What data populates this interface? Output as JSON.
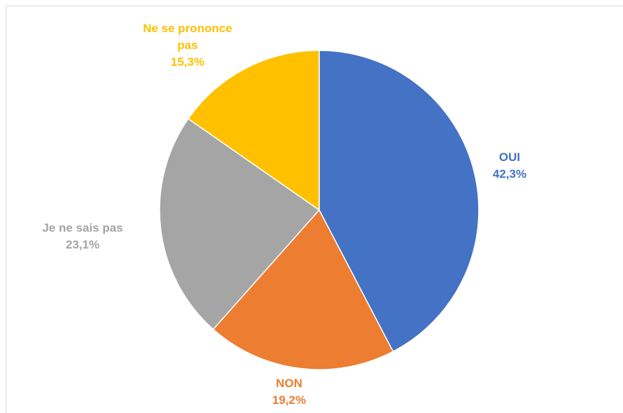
{
  "chart_data": {
    "type": "pie",
    "categories": [
      "OUI",
      "NON",
      "Je ne sais pas",
      "Ne se prononce pas"
    ],
    "values": [
      42.3,
      19.2,
      23.1,
      15.3
    ],
    "value_labels": [
      "42,3%",
      "19,2%",
      "23,1%",
      "15,3%"
    ],
    "colors": [
      "#4472c4",
      "#ed7d31",
      "#a5a5a5",
      "#ffc000"
    ]
  }
}
